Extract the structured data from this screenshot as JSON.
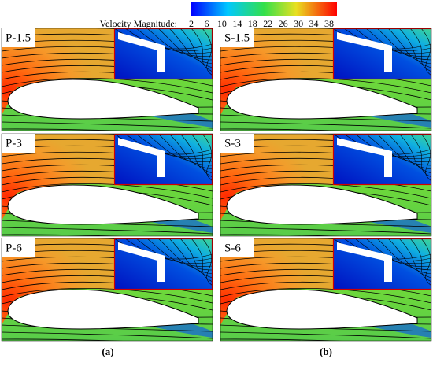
{
  "colorbar": {
    "title": "Velocity Magnitude:",
    "ticks": [
      2,
      6,
      10,
      14,
      18,
      22,
      26,
      30,
      34,
      38
    ]
  },
  "panels": [
    {
      "label": "P-1.5"
    },
    {
      "label": "P-3"
    },
    {
      "label": "P-6"
    },
    {
      "label": "S-1.5"
    },
    {
      "label": "S-3"
    },
    {
      "label": "S-6"
    }
  ],
  "captions": [
    "(a)",
    "(b)"
  ]
}
